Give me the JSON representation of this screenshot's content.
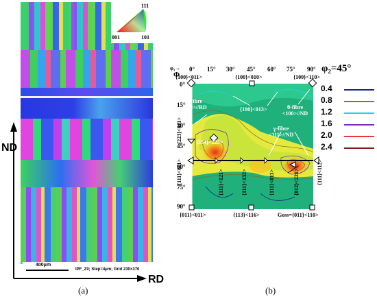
{
  "panel_a": {
    "inset_labels": {
      "top": "111",
      "left": "001",
      "right": "101"
    },
    "scale_bar_label": "400μm",
    "info_text": "IPF_Z0; Step=4μm; Grid 230×370",
    "nd_label": "ND",
    "rd_label": "RD",
    "caption": "(a)"
  },
  "panel_b": {
    "title": "φ₂=45°",
    "phi1_label": "φ₁→",
    "phi_label": "Φ",
    "top_ticks": [
      "0°",
      "15°",
      "30°",
      "45°",
      "60°",
      "75°",
      "90°"
    ],
    "left_ticks": [
      "0°",
      "15°",
      "30°",
      "45°",
      "60°",
      "75°",
      "90°"
    ],
    "top_orients": [
      "{100}<011>",
      "{100}<010>",
      "{100}<110>"
    ],
    "annot_alpha": "α-fibre\n<110>//RD",
    "annot_100_013": "{100}<013>",
    "annot_theta": "θ-fibre\n<100>//ND",
    "annot_gamma": "γ-fibre\n<111>//ND",
    "annot_554": "{554}<225>",
    "left_orient_1": "{223}<011>",
    "left_orient_2": "{111}<011>",
    "right_orient": "{111}<112>",
    "mid_orients": [
      "{111}<121>",
      "{111}<132>",
      "{111}<011>",
      "{012}<221>"
    ],
    "bottom_orients": [
      "{011}<011>",
      "{113}<116>",
      "Goss={011}<110>"
    ],
    "legend": [
      {
        "label": "0.4",
        "color": "#1a237e"
      },
      {
        "label": "0.8",
        "color": "#7a7a1e"
      },
      {
        "label": "1.2",
        "color": "#22d3e6"
      },
      {
        "label": "1.6",
        "color": "#7b2cbf"
      },
      {
        "label": "2.0",
        "color": "#e53935"
      },
      {
        "label": "2.4",
        "color": "#8b1a1a"
      }
    ],
    "caption": "(b)"
  }
}
